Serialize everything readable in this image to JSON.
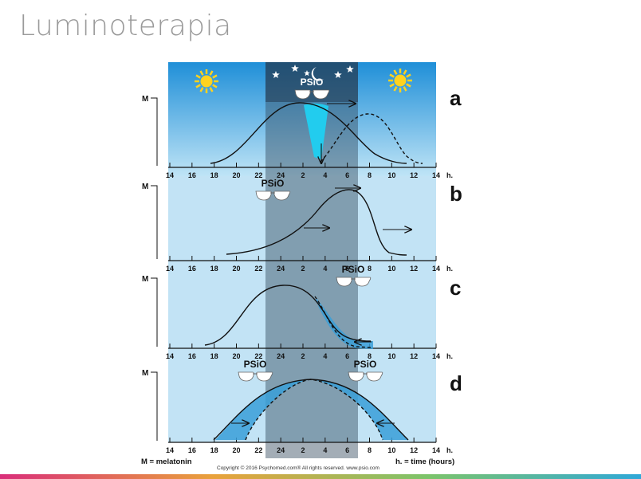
{
  "title": "Luminoterapia",
  "y_axis_label": "M",
  "hour_unit_label": "h.",
  "hour_ticks": [
    "14",
    "16",
    "18",
    "20",
    "22",
    "24",
    "2",
    "4",
    "6",
    "8",
    "10",
    "12",
    "14"
  ],
  "panels": [
    {
      "letter": "a",
      "badges": [
        "PSiO"
      ]
    },
    {
      "letter": "b",
      "badges": [
        "PSiO"
      ]
    },
    {
      "letter": "c",
      "badges": [
        "PSiO"
      ]
    },
    {
      "letter": "d",
      "badges": [
        "PSiO",
        "PSiO"
      ]
    }
  ],
  "footer": {
    "legend_left": "M = melatonin",
    "legend_right": "h. = time (hours)",
    "copyright": "Copyright © 2016 Psychomed.com® All rights reserved. www.psio.com"
  },
  "colors": {
    "sky_top": "#1f8fd8",
    "sky_bottom": "#bfe4f6",
    "panel_light": "#c2e3f5",
    "night_band": "#34495e",
    "light_fill": "#22ccee",
    "shift_fill": "#3a9fd8",
    "sun": "#ffd21f",
    "bar_from": "#d92e7a",
    "bar_to": "#2fa8d8"
  },
  "icons": [
    "sun-icon",
    "star-icon",
    "moon-icon",
    "glasses-icon",
    "arrow-icon"
  ]
}
